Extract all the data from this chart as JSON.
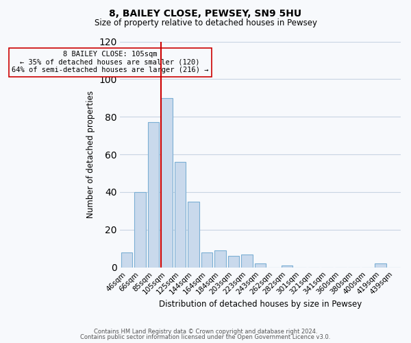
{
  "title": "8, BAILEY CLOSE, PEWSEY, SN9 5HU",
  "subtitle": "Size of property relative to detached houses in Pewsey",
  "xlabel": "Distribution of detached houses by size in Pewsey",
  "ylabel": "Number of detached properties",
  "bar_labels": [
    "46sqm",
    "66sqm",
    "85sqm",
    "105sqm",
    "125sqm",
    "144sqm",
    "164sqm",
    "184sqm",
    "203sqm",
    "223sqm",
    "243sqm",
    "262sqm",
    "282sqm",
    "301sqm",
    "321sqm",
    "341sqm",
    "360sqm",
    "380sqm",
    "400sqm",
    "419sqm",
    "439sqm"
  ],
  "bar_values": [
    8,
    40,
    77,
    90,
    56,
    35,
    8,
    9,
    6,
    7,
    2,
    0,
    1,
    0,
    0,
    0,
    0,
    0,
    0,
    2,
    0
  ],
  "bar_color": "#c9d9ec",
  "bar_edge_color": "#7bafd4",
  "vline_bar_index": 3,
  "vline_color": "#cc0000",
  "annotation_text_line1": "8 BAILEY CLOSE: 105sqm",
  "annotation_text_line2": "← 35% of detached houses are smaller (120)",
  "annotation_text_line3": "64% of semi-detached houses are larger (216) →",
  "box_edge_color": "#cc0000",
  "ylim": [
    0,
    120
  ],
  "yticks": [
    0,
    20,
    40,
    60,
    80,
    100,
    120
  ],
  "footnote1": "Contains HM Land Registry data © Crown copyright and database right 2024.",
  "footnote2": "Contains public sector information licensed under the Open Government Licence v3.0.",
  "bg_color": "#f7f9fc",
  "grid_color": "#c8d4e3"
}
